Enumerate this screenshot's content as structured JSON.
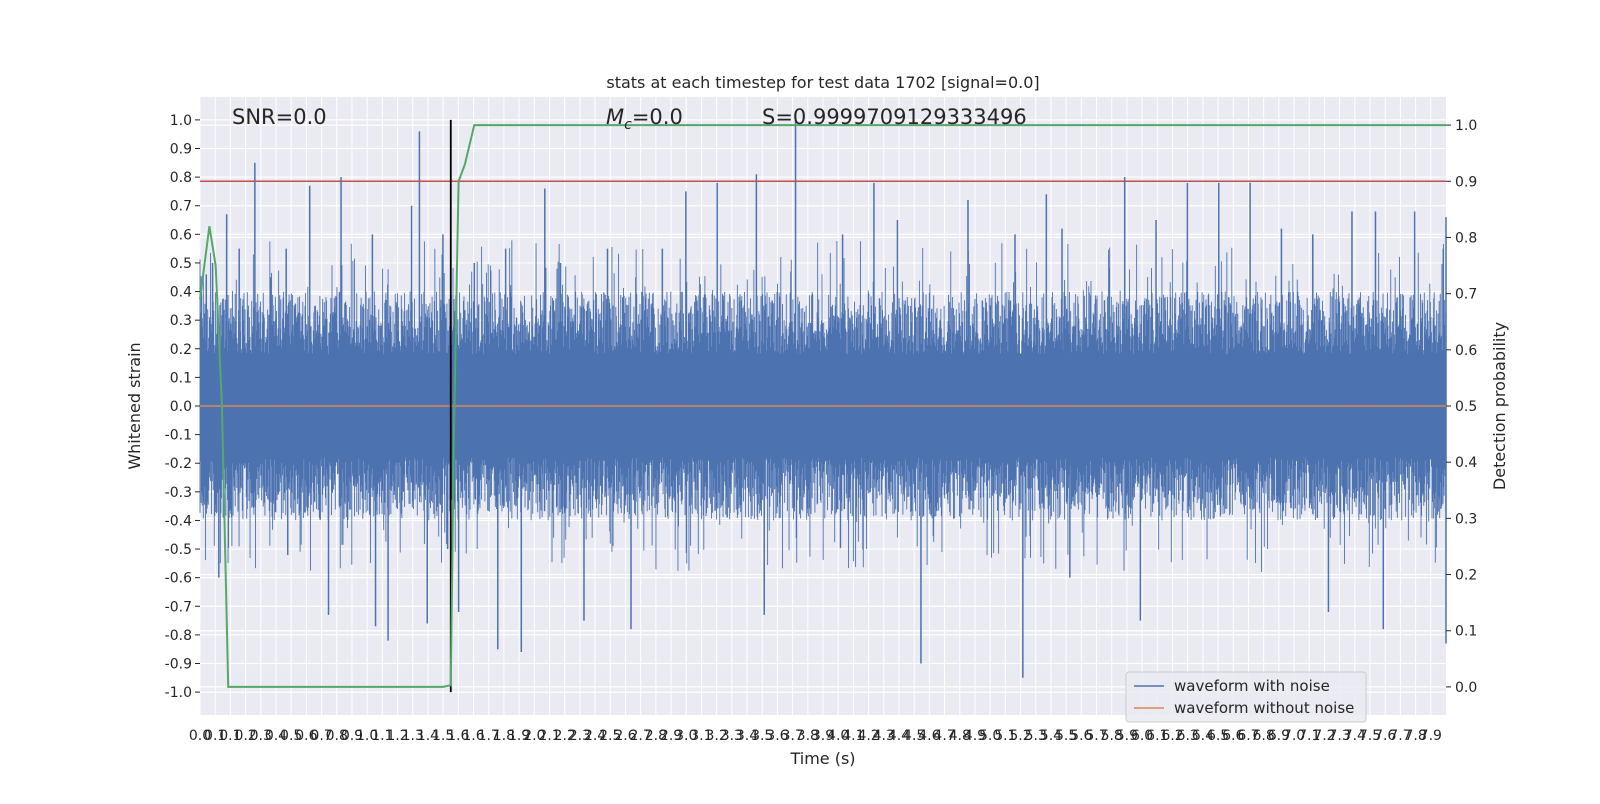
{
  "chart_data": {
    "type": "line",
    "title": "stats at each timestep for test data 1702 [signal=0.0]",
    "xlabel": "Time (s)",
    "ylabel_left": "Whitened strain",
    "ylabel_right": "Detection probability",
    "xlim": [
      0.0,
      7.95
    ],
    "ylim_left": [
      -1.08,
      1.08
    ],
    "ylim_right": [
      -0.05,
      1.05
    ],
    "x_ticks": [
      "0.0",
      "0.1",
      "0.1",
      "0.2",
      "0.3",
      "0.4",
      "0.5",
      "0.6",
      "0.7",
      "0.8",
      "0.9",
      "1.0",
      "1.1",
      "1.2",
      "1.3",
      "1.4",
      "1.5",
      "1.6",
      "1.6",
      "1.7",
      "1.8",
      "1.9",
      "2.0",
      "2.1",
      "2.2",
      "2.3",
      "2.4",
      "2.5",
      "2.6",
      "2.7",
      "2.8",
      "2.9",
      "3.0",
      "3.1",
      "3.2",
      "3.3",
      "3.4",
      "3.5",
      "3.6",
      "3.7",
      "3.8",
      "3.9",
      "4.0",
      "4.1",
      "4.2",
      "4.3",
      "4.4",
      "4.5",
      "4.6",
      "4.7",
      "4.8",
      "4.9",
      "5.0",
      "5.1",
      "5.2",
      "5.3",
      "5.4",
      "5.5",
      "5.6",
      "5.7",
      "5.8",
      "5.9",
      "6.0",
      "6.1",
      "6.2",
      "6.3",
      "6.4",
      "6.5",
      "6.6",
      "6.7",
      "6.8",
      "6.9",
      "7.0",
      "7.1",
      "7.2",
      "7.3",
      "7.4",
      "7.5",
      "7.6",
      "7.7",
      "7.8",
      "7.9"
    ],
    "y_ticks_left": [
      "1.0",
      "0.9",
      "0.8",
      "0.7",
      "0.6",
      "0.5",
      "0.4",
      "0.3",
      "0.2",
      "0.1",
      "0.0",
      "-0.1",
      "-0.2",
      "-0.3",
      "-0.4",
      "-0.5",
      "-0.6",
      "-0.7",
      "-0.8",
      "-0.9",
      "-1.0"
    ],
    "y_ticks_right": [
      "1.0",
      "0.9",
      "0.8",
      "0.7",
      "0.6",
      "0.5",
      "0.4",
      "0.3",
      "0.2",
      "0.1",
      "0.0"
    ],
    "annotations": {
      "snr": "SNR=0.0",
      "mc_symbol": "M",
      "mc_subscript": "c",
      "mc_value": "=0.0",
      "s": "S=0.9999709129333496"
    },
    "threshold_line": {
      "axis": "right",
      "y": 0.9,
      "color": "#c44e52"
    },
    "marker_line": {
      "axis": "left",
      "x": 1.6,
      "y_range": [
        -1.0,
        1.0
      ],
      "color": "#000000"
    },
    "series": [
      {
        "name": "waveform with noise",
        "axis": "left",
        "color": "#4c72b0",
        "envelope_typical": 0.4,
        "peaks": [
          [
            0.04,
            0.46
          ],
          [
            0.08,
            0.5
          ],
          [
            0.12,
            -0.6
          ],
          [
            0.17,
            0.67
          ],
          [
            0.25,
            0.55
          ],
          [
            0.35,
            0.85
          ],
          [
            0.45,
            0.45
          ],
          [
            0.55,
            0.55
          ],
          [
            0.7,
            0.77
          ],
          [
            0.9,
            0.8
          ],
          [
            0.82,
            -0.73
          ],
          [
            1.1,
            0.6
          ],
          [
            1.12,
            -0.77
          ],
          [
            1.2,
            -0.82
          ],
          [
            1.35,
            0.7
          ],
          [
            1.4,
            0.96
          ],
          [
            1.45,
            -0.76
          ],
          [
            1.55,
            0.6
          ],
          [
            1.58,
            -0.5
          ],
          [
            1.65,
            -0.72
          ],
          [
            1.75,
            0.5
          ],
          [
            1.9,
            -0.85
          ],
          [
            1.95,
            0.55
          ],
          [
            2.05,
            -0.86
          ],
          [
            2.2,
            0.76
          ],
          [
            2.3,
            0.5
          ],
          [
            2.45,
            -0.75
          ],
          [
            2.6,
            0.55
          ],
          [
            2.75,
            -0.78
          ],
          [
            2.95,
            0.55
          ],
          [
            3.1,
            0.75
          ],
          [
            3.3,
            0.78
          ],
          [
            3.55,
            0.81
          ],
          [
            3.6,
            -0.73
          ],
          [
            3.8,
            1.0
          ],
          [
            4.1,
            0.6
          ],
          [
            4.3,
            0.78
          ],
          [
            4.45,
            0.65
          ],
          [
            4.6,
            -0.9
          ],
          [
            4.9,
            0.72
          ],
          [
            5.2,
            0.6
          ],
          [
            5.25,
            -0.95
          ],
          [
            5.4,
            0.74
          ],
          [
            5.5,
            0.62
          ],
          [
            5.55,
            -0.6
          ],
          [
            5.9,
            0.8
          ],
          [
            6.0,
            -0.75
          ],
          [
            6.1,
            0.65
          ],
          [
            6.3,
            0.78
          ],
          [
            6.5,
            0.78
          ],
          [
            6.7,
            0.78
          ],
          [
            6.9,
            0.62
          ],
          [
            7.1,
            0.6
          ],
          [
            7.2,
            -0.72
          ],
          [
            7.35,
            0.68
          ],
          [
            7.5,
            0.68
          ],
          [
            7.55,
            -0.78
          ],
          [
            7.75,
            0.68
          ],
          [
            7.95,
            0.66
          ],
          [
            7.95,
            -0.83
          ]
        ]
      },
      {
        "name": "waveform without noise",
        "axis": "left",
        "color": "#dd8452",
        "constant": 0.0
      },
      {
        "name": "Detection probability",
        "axis": "right",
        "color": "#55a868",
        "x": [
          0.0,
          0.06,
          0.1,
          0.14,
          0.18,
          0.24,
          0.3,
          0.6,
          1.0,
          1.5,
          1.55,
          1.6,
          1.62,
          1.65,
          1.69,
          1.75,
          2.0,
          4.0,
          7.95
        ],
        "y": [
          0.69,
          0.82,
          0.75,
          0.5,
          0.0,
          0.0,
          0.0,
          0.0,
          0.0,
          0.0,
          0.0,
          0.003,
          0.45,
          0.9,
          0.93,
          1.0,
          1.0,
          1.0,
          1.0
        ]
      }
    ],
    "legend": {
      "placement": "lower-right",
      "entries": [
        {
          "label": "waveform with noise",
          "color": "#4c72b0"
        },
        {
          "label": "waveform without noise",
          "color": "#dd8452"
        }
      ]
    },
    "grid": true,
    "colors": {
      "background": "#eaeaf2",
      "grid": "#ffffff"
    }
  }
}
